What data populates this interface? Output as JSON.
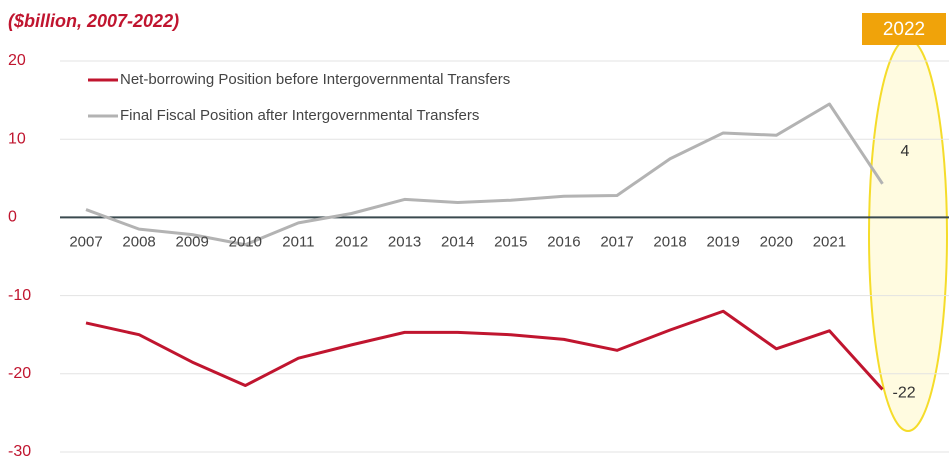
{
  "chart_data": {
    "type": "line",
    "subtitle": "($billion, 2007-2022)",
    "categories": [
      "2007",
      "2008",
      "2009",
      "2010",
      "2011",
      "2012",
      "2013",
      "2014",
      "2015",
      "2016",
      "2017",
      "2018",
      "2019",
      "2020",
      "2021",
      "2022"
    ],
    "series": [
      {
        "name": "Net-borrowing Position before Intergovernmental Transfers",
        "color": "#c0152f",
        "values": [
          -13.5,
          -15,
          -18.5,
          -21.5,
          -18,
          -16.3,
          -14.7,
          -14.7,
          -15,
          -15.6,
          -17,
          -14.4,
          -12,
          -16.8,
          -14.5,
          -22
        ],
        "value_labels": [
          null,
          null,
          null,
          null,
          null,
          null,
          null,
          null,
          null,
          null,
          null,
          null,
          null,
          null,
          null,
          "-22"
        ]
      },
      {
        "name": "Final Fiscal Position after Intergovernmental Transfers",
        "color": "#b3b3b3",
        "values": [
          1.0,
          -1.5,
          -2.2,
          -3.5,
          -0.7,
          0.5,
          2.3,
          1.9,
          2.2,
          2.7,
          2.8,
          7.5,
          10.8,
          10.5,
          14.5,
          4.3
        ],
        "value_labels": [
          null,
          null,
          null,
          null,
          null,
          null,
          null,
          null,
          null,
          null,
          null,
          null,
          null,
          null,
          null,
          "4"
        ]
      }
    ],
    "ylim": [
      -30,
      20
    ],
    "yticks": [
      20,
      10,
      0,
      -10,
      -20,
      -30
    ],
    "grid": true,
    "legend": "top-left"
  }
}
